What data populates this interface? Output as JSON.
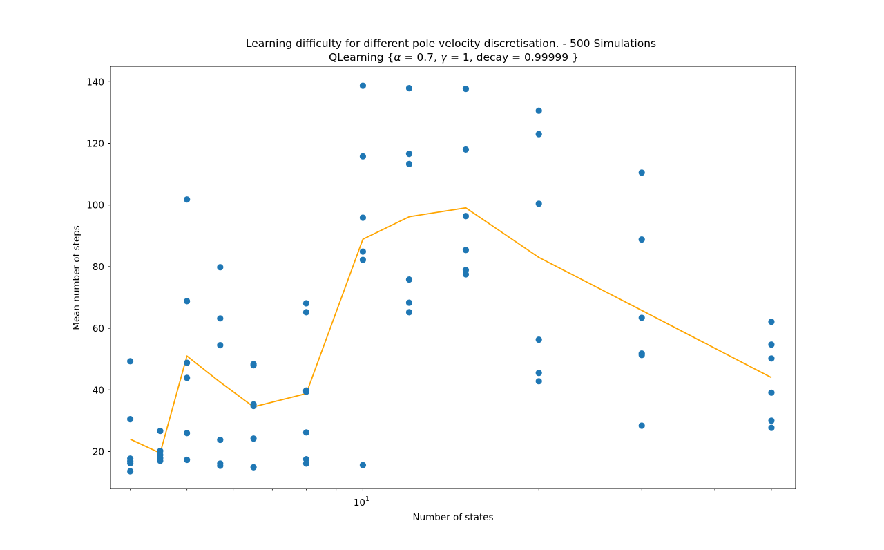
{
  "chart_data": {
    "type": "scatter",
    "title": "Learning difficulty for different pole velocity discretisation. - 500 Simulations",
    "title_line2_parts": [
      "QLearning {",
      "α",
      " = 0.7, ",
      "γ",
      " = 1, decay =  0.99999 }"
    ],
    "xlabel": "Number of states",
    "ylabel": "Mean number of steps",
    "xscale": "log",
    "xlim": [
      3.7,
      55
    ],
    "ylim": [
      8,
      145
    ],
    "x_major_tick": {
      "value": 10,
      "base": "10",
      "exponent": "1"
    },
    "x_minor_ticks": [
      4,
      5,
      6,
      7,
      8,
      9,
      20,
      30,
      40,
      50
    ],
    "y_ticks": [
      20,
      40,
      60,
      80,
      100,
      120,
      140
    ],
    "grid": false,
    "colors": {
      "points": "#1f77b4",
      "line": "#ffa500"
    },
    "series": [
      {
        "type": "scatter",
        "points": [
          [
            4,
            49.3
          ],
          [
            4,
            30.5
          ],
          [
            4,
            17.7
          ],
          [
            4,
            16.9
          ],
          [
            4,
            16.2
          ],
          [
            4,
            13.6
          ],
          [
            4.5,
            26.7
          ],
          [
            4.5,
            20.2
          ],
          [
            4.5,
            18.9
          ],
          [
            4.5,
            17.9
          ],
          [
            4.5,
            17.0
          ],
          [
            5,
            101.8
          ],
          [
            5,
            68.8
          ],
          [
            5,
            48.8
          ],
          [
            5,
            43.9
          ],
          [
            5,
            26.0
          ],
          [
            5,
            17.3
          ],
          [
            5.7,
            79.8
          ],
          [
            5.7,
            63.2
          ],
          [
            5.7,
            54.5
          ],
          [
            5.7,
            23.8
          ],
          [
            5.7,
            16.1
          ],
          [
            5.7,
            15.4
          ],
          [
            6.5,
            48.4
          ],
          [
            6.5,
            48.0
          ],
          [
            6.5,
            35.3
          ],
          [
            6.5,
            34.8
          ],
          [
            6.5,
            24.2
          ],
          [
            6.5,
            14.9
          ],
          [
            8,
            68.1
          ],
          [
            8,
            65.2
          ],
          [
            8,
            39.8
          ],
          [
            8,
            39.4
          ],
          [
            8,
            26.2
          ],
          [
            8,
            17.5
          ],
          [
            8,
            16.1
          ],
          [
            10,
            138.7
          ],
          [
            10,
            115.8
          ],
          [
            10,
            95.9
          ],
          [
            10,
            84.9
          ],
          [
            10,
            82.2
          ],
          [
            10,
            15.6
          ],
          [
            12,
            137.9
          ],
          [
            12,
            116.6
          ],
          [
            12,
            113.3
          ],
          [
            12,
            75.8
          ],
          [
            12,
            68.3
          ],
          [
            12,
            65.2
          ],
          [
            15,
            137.7
          ],
          [
            15,
            118.0
          ],
          [
            15,
            96.4
          ],
          [
            15,
            85.4
          ],
          [
            15,
            78.9
          ],
          [
            15,
            77.5
          ],
          [
            20,
            130.6
          ],
          [
            20,
            123.0
          ],
          [
            20,
            100.4
          ],
          [
            20,
            56.3
          ],
          [
            20,
            45.5
          ],
          [
            20,
            42.8
          ],
          [
            30,
            110.5
          ],
          [
            30,
            88.8
          ],
          [
            30,
            63.4
          ],
          [
            30,
            51.8
          ],
          [
            30,
            51.3
          ],
          [
            30,
            28.4
          ],
          [
            50,
            62.1
          ],
          [
            50,
            54.7
          ],
          [
            50,
            50.2
          ],
          [
            50,
            39.1
          ],
          [
            50,
            30.0
          ],
          [
            50,
            27.7
          ]
        ]
      },
      {
        "type": "line",
        "points": [
          [
            4,
            24.0
          ],
          [
            4.5,
            19.5
          ],
          [
            5,
            51.0
          ],
          [
            5.7,
            42.5
          ],
          [
            6.5,
            34.5
          ],
          [
            8,
            38.8
          ],
          [
            10,
            88.9
          ],
          [
            12,
            96.2
          ],
          [
            15,
            99.1
          ],
          [
            20,
            83.0
          ],
          [
            30,
            65.8
          ],
          [
            50,
            44.0
          ]
        ]
      }
    ]
  }
}
